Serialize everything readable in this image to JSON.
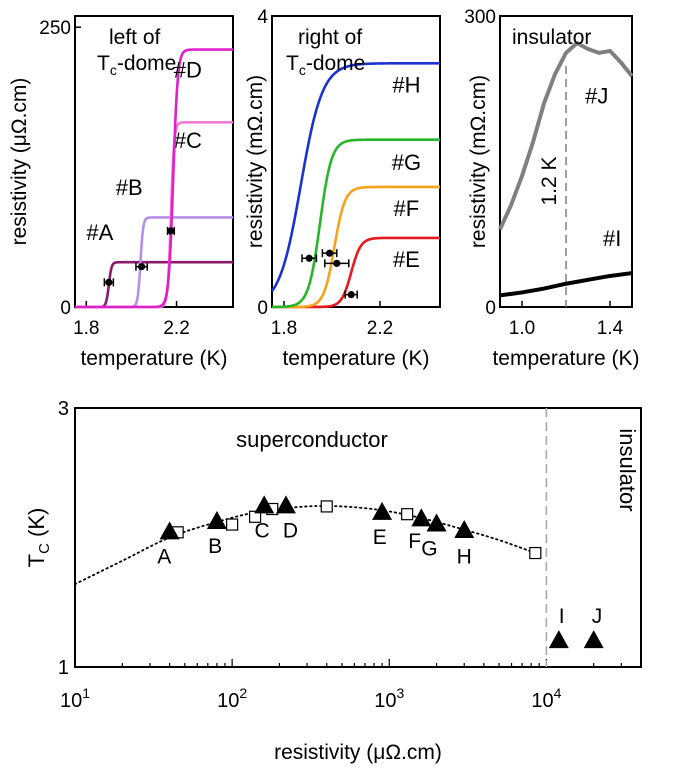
{
  "chart_data": [
    {
      "type": "line",
      "title": "left of",
      "title_line2": "T",
      "title_sub": "c",
      "title_rest": "-dome",
      "xlabel": "temperature (K)",
      "ylabel": "resistivity (μΩ.cm)",
      "xlim": [
        1.75,
        2.45
      ],
      "ylim": [
        0,
        260
      ],
      "xticks": [
        {
          "v": 1.8,
          "label": "1.8"
        },
        {
          "v": 2.2,
          "label": "2.2"
        }
      ],
      "yticks": [
        {
          "v": 0,
          "label": "0"
        },
        {
          "v": 250,
          "label": "250"
        }
      ],
      "series": [
        {
          "name": "#A",
          "color": "#8b1a6b",
          "Tc": 1.9,
          "w": 0.006,
          "rn": 40,
          "label_pos": [
            1.86,
            60
          ]
        },
        {
          "name": "#B",
          "color": "#b48ee8",
          "Tc": 2.04,
          "w": 0.006,
          "rn": 80,
          "label_pos": [
            1.99,
            100
          ]
        },
        {
          "name": "#C",
          "color": "#f27bd8",
          "Tc": 2.175,
          "w": 0.007,
          "rn": 165,
          "label_pos": [
            2.25,
            142
          ]
        },
        {
          "name": "#D",
          "color": "#e020c8",
          "Tc": 2.185,
          "w": 0.01,
          "rn": 230,
          "label_pos": [
            2.25,
            205
          ]
        }
      ],
      "markers": [
        {
          "x": 1.9,
          "y": 22,
          "xerr": 0.02
        },
        {
          "x": 2.045,
          "y": 36,
          "xerr": 0.025
        },
        {
          "x": 2.175,
          "y": 68,
          "xerr": 0.015
        }
      ]
    },
    {
      "type": "line",
      "title": "right of",
      "title_line2": "T",
      "title_sub": "c",
      "title_rest": "-dome",
      "xlabel": "temperature (K)",
      "ylabel": "resistivity (mΩ.cm)",
      "xlim": [
        1.75,
        2.45
      ],
      "ylim": [
        0,
        4
      ],
      "xticks": [
        {
          "v": 1.8,
          "label": "1.8"
        },
        {
          "v": 2.2,
          "label": "2.2"
        }
      ],
      "yticks": [
        {
          "v": 0,
          "label": "0"
        },
        {
          "v": 4,
          "label": "4"
        }
      ],
      "series": [
        {
          "name": "#E",
          "color": "#e41a1c",
          "Tc": 2.08,
          "w": 0.02,
          "rn": 0.95,
          "label_pos": [
            2.31,
            0.55
          ]
        },
        {
          "name": "#F",
          "color": "#f7a21b",
          "Tc": 2.01,
          "w": 0.022,
          "rn": 1.65,
          "label_pos": [
            2.31,
            1.25
          ]
        },
        {
          "name": "#G",
          "color": "#27b52a",
          "Tc": 1.95,
          "w": 0.024,
          "rn": 2.3,
          "label_pos": [
            2.31,
            1.88
          ]
        },
        {
          "name": "#H",
          "color": "#1a33cc",
          "Tc": 1.87,
          "w": 0.045,
          "rn": 3.35,
          "label_pos": [
            2.31,
            2.95
          ]
        }
      ],
      "markers": [
        {
          "x": 1.905,
          "y": 0.67,
          "xerr": 0.03
        },
        {
          "x": 1.99,
          "y": 0.74,
          "xerr": 0.03
        },
        {
          "x": 2.02,
          "y": 0.6,
          "xerr": 0.05
        },
        {
          "x": 2.08,
          "y": 0.17,
          "xerr": 0.025
        }
      ]
    },
    {
      "type": "line",
      "title": "insulator",
      "xlabel": "temperature (K)",
      "ylabel": "resistivity (mΩ.cm)",
      "xlim": [
        0.9,
        1.5
      ],
      "ylim": [
        0,
        300
      ],
      "xticks": [
        {
          "v": 1.0,
          "label": "1.0"
        },
        {
          "v": 1.4,
          "label": "1.4"
        }
      ],
      "yticks": [
        {
          "v": 0,
          "label": "0"
        },
        {
          "v": 300,
          "label": "300"
        }
      ],
      "vline": {
        "x": 1.2,
        "label": "1.2 K"
      },
      "series": [
        {
          "name": "#J",
          "color": "#808080",
          "x": [
            0.9,
            0.95,
            1.0,
            1.05,
            1.1,
            1.15,
            1.2,
            1.25,
            1.3,
            1.35,
            1.4,
            1.45,
            1.5
          ],
          "y": [
            80,
            105,
            135,
            170,
            210,
            240,
            262,
            272,
            266,
            262,
            264,
            252,
            238
          ],
          "label_pos": [
            1.34,
            210
          ]
        },
        {
          "name": "#I",
          "color": "#000000",
          "x": [
            0.9,
            1.0,
            1.1,
            1.2,
            1.3,
            1.4,
            1.5
          ],
          "y": [
            12,
            15,
            19,
            24,
            28,
            32,
            35
          ],
          "label_pos": [
            1.41,
            63
          ]
        }
      ]
    },
    {
      "type": "scatter",
      "xlabel": "resistivity (μΩ.cm)",
      "ylabel": "T",
      "ylabel_sub": "C",
      "ylabel_rest": " (K)",
      "xscale": "log",
      "xlim": [
        10,
        40000
      ],
      "ylim": [
        1,
        3
      ],
      "xticks": [
        {
          "v": 10,
          "base": "10",
          "exp": "1"
        },
        {
          "v": 100,
          "base": "10",
          "exp": "2"
        },
        {
          "v": 1000,
          "base": "10",
          "exp": "3"
        },
        {
          "v": 10000,
          "base": "10",
          "exp": "4"
        }
      ],
      "yticks": [
        {
          "v": 1,
          "label": "1"
        },
        {
          "v": 3,
          "label": "3"
        }
      ],
      "regions": [
        "superconductor",
        "insulator"
      ],
      "vline_x": 10000,
      "triangles": [
        {
          "label": "A",
          "x": 40,
          "y": 2.04,
          "lx": 37,
          "ly": 1.8
        },
        {
          "label": "B",
          "x": 80,
          "y": 2.12,
          "lx": 78,
          "ly": 1.88
        },
        {
          "label": "C",
          "x": 160,
          "y": 2.24,
          "lx": 155,
          "ly": 2.0
        },
        {
          "label": "D",
          "x": 220,
          "y": 2.24,
          "lx": 235,
          "ly": 2.0
        },
        {
          "label": "E",
          "x": 900,
          "y": 2.19,
          "lx": 870,
          "ly": 1.95
        },
        {
          "label": "F",
          "x": 1600,
          "y": 2.14,
          "lx": 1450,
          "ly": 1.92
        },
        {
          "label": "G",
          "x": 2000,
          "y": 2.1,
          "lx": 1800,
          "ly": 1.86
        },
        {
          "label": "H",
          "x": 3000,
          "y": 2.05,
          "lx": 3000,
          "ly": 1.8
        },
        {
          "label": "I",
          "x": 12000,
          "y": 1.2,
          "lx": 12500,
          "ly": 1.34
        },
        {
          "label": "J",
          "x": 20000,
          "y": 1.2,
          "lx": 21000,
          "ly": 1.34
        }
      ],
      "squares": {
        "x": [
          45,
          100,
          140,
          180,
          400,
          1300,
          8500
        ],
        "y": [
          2.04,
          2.1,
          2.16,
          2.22,
          2.24,
          2.18,
          1.88
        ]
      },
      "dotted_curve": {
        "x": [
          10,
          20,
          40,
          80,
          150,
          300,
          500,
          900,
          1600,
          3000,
          5000,
          8500
        ],
        "y": [
          1.64,
          1.82,
          2.0,
          2.12,
          2.2,
          2.24,
          2.24,
          2.21,
          2.15,
          2.06,
          1.98,
          1.88
        ]
      }
    }
  ]
}
